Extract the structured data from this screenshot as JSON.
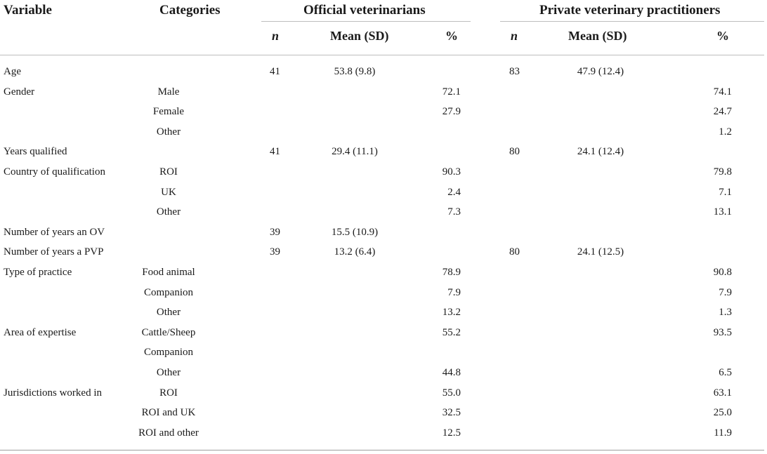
{
  "headers": {
    "variable": "Variable",
    "categories": "Categories",
    "ov_group": "Official veterinarians",
    "pvp_group": "Private veterinary practitioners",
    "n": "n",
    "mean_sd": "Mean (SD)",
    "pct": "%"
  },
  "rows": [
    {
      "variable": "Age",
      "category": "",
      "ov_n": "41",
      "ov_mean": "53.8 (9.8)",
      "ov_pct": "",
      "pvp_n": "83",
      "pvp_mean": "47.9 (12.4)",
      "pvp_pct": ""
    },
    {
      "variable": "Gender",
      "category": "Male",
      "ov_n": "",
      "ov_mean": "",
      "ov_pct": "72.1",
      "pvp_n": "",
      "pvp_mean": "",
      "pvp_pct": "74.1"
    },
    {
      "variable": "",
      "category": "Female",
      "ov_n": "",
      "ov_mean": "",
      "ov_pct": "27.9",
      "pvp_n": "",
      "pvp_mean": "",
      "pvp_pct": "24.7"
    },
    {
      "variable": "",
      "category": "Other",
      "ov_n": "",
      "ov_mean": "",
      "ov_pct": "",
      "pvp_n": "",
      "pvp_mean": "",
      "pvp_pct": "1.2"
    },
    {
      "variable": "Years qualified",
      "category": "",
      "ov_n": "41",
      "ov_mean": "29.4 (11.1)",
      "ov_pct": "",
      "pvp_n": "80",
      "pvp_mean": "24.1 (12.4)",
      "pvp_pct": ""
    },
    {
      "variable": "Country of qualification",
      "category": "ROI",
      "ov_n": "",
      "ov_mean": "",
      "ov_pct": "90.3",
      "pvp_n": "",
      "pvp_mean": "",
      "pvp_pct": "79.8"
    },
    {
      "variable": "",
      "category": "UK",
      "ov_n": "",
      "ov_mean": "",
      "ov_pct": "2.4",
      "pvp_n": "",
      "pvp_mean": "",
      "pvp_pct": "7.1"
    },
    {
      "variable": "",
      "category": "Other",
      "ov_n": "",
      "ov_mean": "",
      "ov_pct": "7.3",
      "pvp_n": "",
      "pvp_mean": "",
      "pvp_pct": "13.1"
    },
    {
      "variable": "Number of years an OV",
      "category": "",
      "ov_n": "39",
      "ov_mean": "15.5 (10.9)",
      "ov_pct": "",
      "pvp_n": "",
      "pvp_mean": "",
      "pvp_pct": ""
    },
    {
      "variable": "Number of years a PVP",
      "category": "",
      "ov_n": "39",
      "ov_mean": "13.2 (6.4)",
      "ov_pct": "",
      "pvp_n": "80",
      "pvp_mean": "24.1 (12.5)",
      "pvp_pct": ""
    },
    {
      "variable": "Type of practice",
      "category": "Food animal",
      "ov_n": "",
      "ov_mean": "",
      "ov_pct": "78.9",
      "pvp_n": "",
      "pvp_mean": "",
      "pvp_pct": "90.8"
    },
    {
      "variable": "",
      "category": "Companion",
      "ov_n": "",
      "ov_mean": "",
      "ov_pct": "7.9",
      "pvp_n": "",
      "pvp_mean": "",
      "pvp_pct": "7.9"
    },
    {
      "variable": "",
      "category": "Other",
      "ov_n": "",
      "ov_mean": "",
      "ov_pct": "13.2",
      "pvp_n": "",
      "pvp_mean": "",
      "pvp_pct": "1.3"
    },
    {
      "variable": "Area of expertise",
      "category": "Cattle/Sheep",
      "ov_n": "",
      "ov_mean": "",
      "ov_pct": "55.2",
      "pvp_n": "",
      "pvp_mean": "",
      "pvp_pct": "93.5"
    },
    {
      "variable": "",
      "category": "Companion",
      "ov_n": "",
      "ov_mean": "",
      "ov_pct": "",
      "pvp_n": "",
      "pvp_mean": "",
      "pvp_pct": ""
    },
    {
      "variable": "",
      "category": "Other",
      "ov_n": "",
      "ov_mean": "",
      "ov_pct": "44.8",
      "pvp_n": "",
      "pvp_mean": "",
      "pvp_pct": "6.5"
    },
    {
      "variable": "Jurisdictions worked in",
      "category": "ROI",
      "ov_n": "",
      "ov_mean": "",
      "ov_pct": "55.0",
      "pvp_n": "",
      "pvp_mean": "",
      "pvp_pct": "63.1"
    },
    {
      "variable": "",
      "category": "ROI and UK",
      "ov_n": "",
      "ov_mean": "",
      "ov_pct": "32.5",
      "pvp_n": "",
      "pvp_mean": "",
      "pvp_pct": "25.0"
    },
    {
      "variable": "",
      "category": "ROI and other",
      "ov_n": "",
      "ov_mean": "",
      "ov_pct": "12.5",
      "pvp_n": "",
      "pvp_mean": "",
      "pvp_pct": "11.9"
    }
  ]
}
